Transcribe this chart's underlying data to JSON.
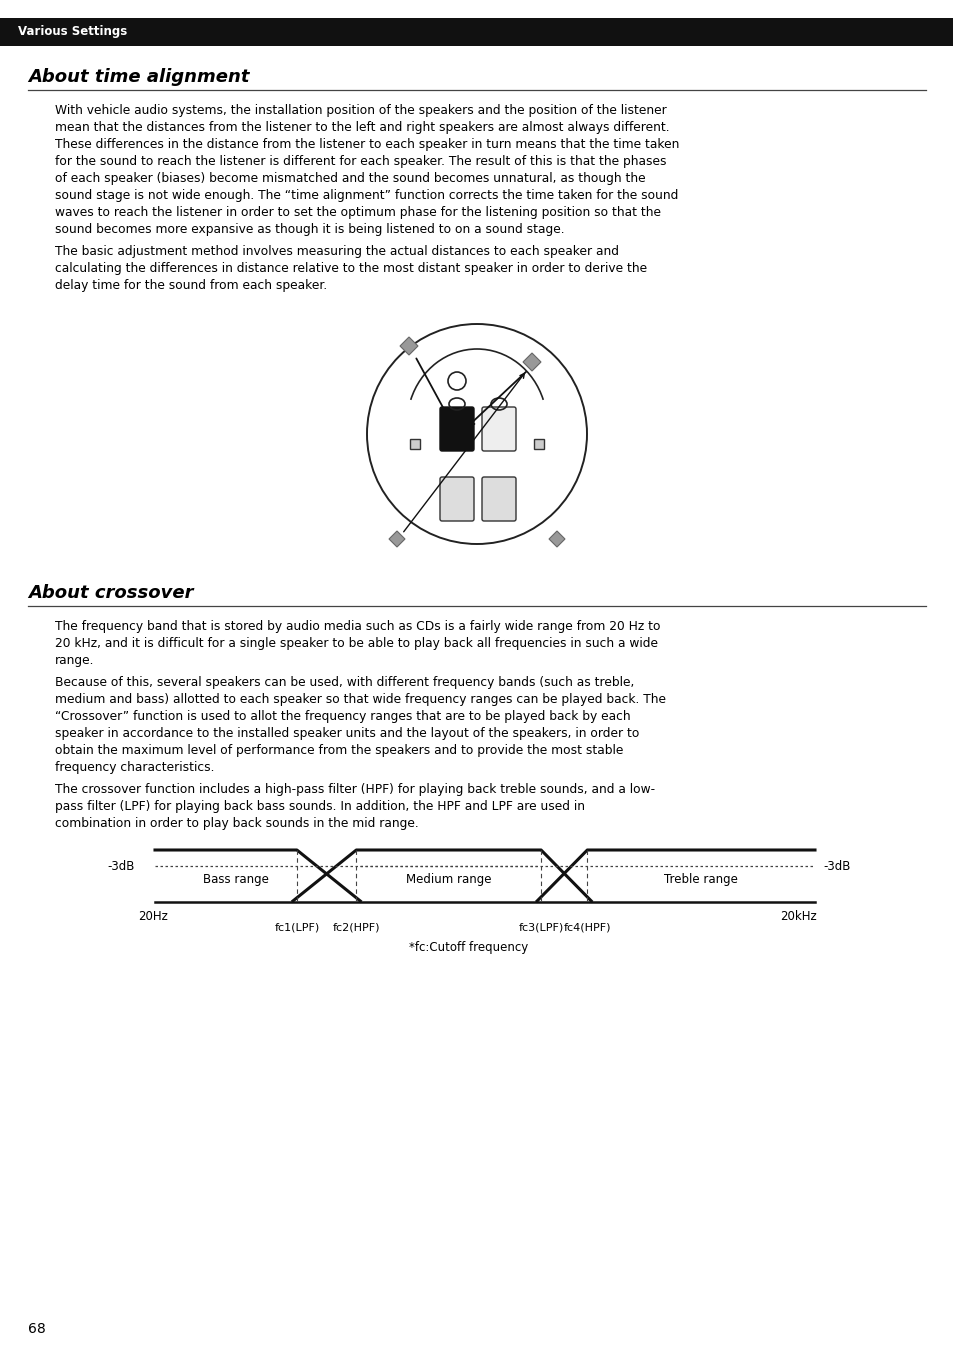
{
  "page_bg": "#ffffff",
  "header_bg": "#111111",
  "header_text": "Various Settings",
  "header_text_color": "#ffffff",
  "section1_title": "About time alignment",
  "section1_para1_lines": [
    "With vehicle audio systems, the installation position of the speakers and the position of the listener",
    "mean that the distances from the listener to the left and right speakers are almost always different.",
    "These differences in the distance from the listener to each speaker in turn means that the time taken",
    "for the sound to reach the listener is different for each speaker. The result of this is that the phases",
    "of each speaker (biases) become mismatched and the sound becomes unnatural, as though the",
    "sound stage is not wide enough. The “time alignment” function corrects the time taken for the sound",
    "waves to reach the listener in order to set the optimum phase for the listening position so that the",
    "sound becomes more expansive as though it is being listened to on a sound stage."
  ],
  "section1_para2_lines": [
    "The basic adjustment method involves measuring the actual distances to each speaker and",
    "calculating the differences in distance relative to the most distant speaker in order to derive the",
    "delay time for the sound from each speaker."
  ],
  "section2_title": "About crossover",
  "section2_para1_lines": [
    "The frequency band that is stored by audio media such as CDs is a fairly wide range from 20 Hz to",
    "20 kHz, and it is difficult for a single speaker to be able to play back all frequencies in such a wide",
    "range."
  ],
  "section2_para2_lines": [
    "Because of this, several speakers can be used, with different frequency bands (such as treble,",
    "medium and bass) allotted to each speaker so that wide frequency ranges can be played back. The",
    "“Crossover” function is used to allot the frequency ranges that are to be played back by each",
    "speaker in accordance to the installed speaker units and the layout of the speakers, in order to",
    "obtain the maximum level of performance from the speakers and to provide the most stable",
    "frequency characteristics."
  ],
  "section2_para3_lines": [
    "The crossover function includes a high-pass filter (HPF) for playing back treble sounds, and a low-",
    "pass filter (LPF) for playing back bass sounds. In addition, the HPF and LPF are used in",
    "combination in order to play back sounds in the mid range."
  ],
  "page_number": "68",
  "crossover_label_3db_left": "-3dB",
  "crossover_label_3db_right": "-3dB",
  "crossover_label_bass": "Bass range",
  "crossover_label_medium": "Medium range",
  "crossover_label_treble": "Treble range",
  "crossover_label_20hz": "20Hz",
  "crossover_label_20khz": "20kHz",
  "crossover_label_fc1": "fc1(LPF)",
  "crossover_label_fc2": "fc2(HPF)",
  "crossover_label_fc3": "fc3(LPF)",
  "crossover_label_fc4": "fc4(HPF)",
  "crossover_footnote": "*fc:Cutoff frequency"
}
